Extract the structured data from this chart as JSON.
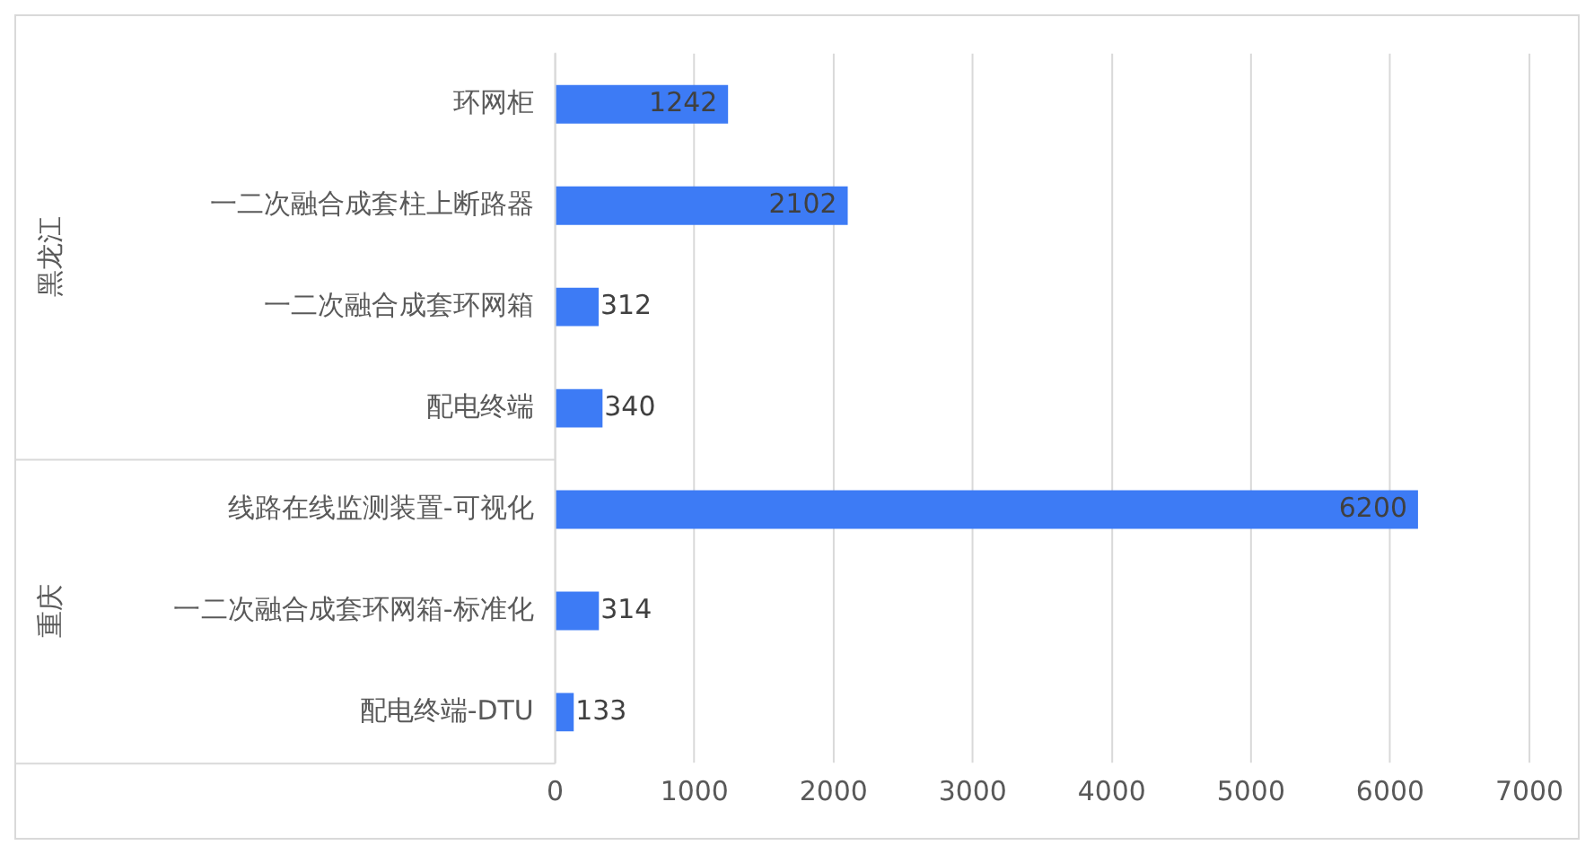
{
  "chart_data": {
    "type": "bar",
    "orientation": "horizontal",
    "categories": [
      "环网柜",
      "一二次融合成套柱上断路器",
      "一二次融合成套环网箱",
      "配电终端",
      "线路在线监测装置-可视化",
      "一二次融合成套环网箱-标准化",
      "配电终端-DTU"
    ],
    "values": [
      1242,
      2102,
      312,
      340,
      6200,
      314,
      133
    ],
    "color": "#3d7bf5",
    "xlim": [
      0,
      7000
    ],
    "xticks": [
      0,
      1000,
      2000,
      3000,
      4000,
      5000,
      6000,
      7000
    ],
    "grid": "x",
    "data_labels": true,
    "annotations": [
      "黑龙江",
      "重庆"
    ]
  }
}
